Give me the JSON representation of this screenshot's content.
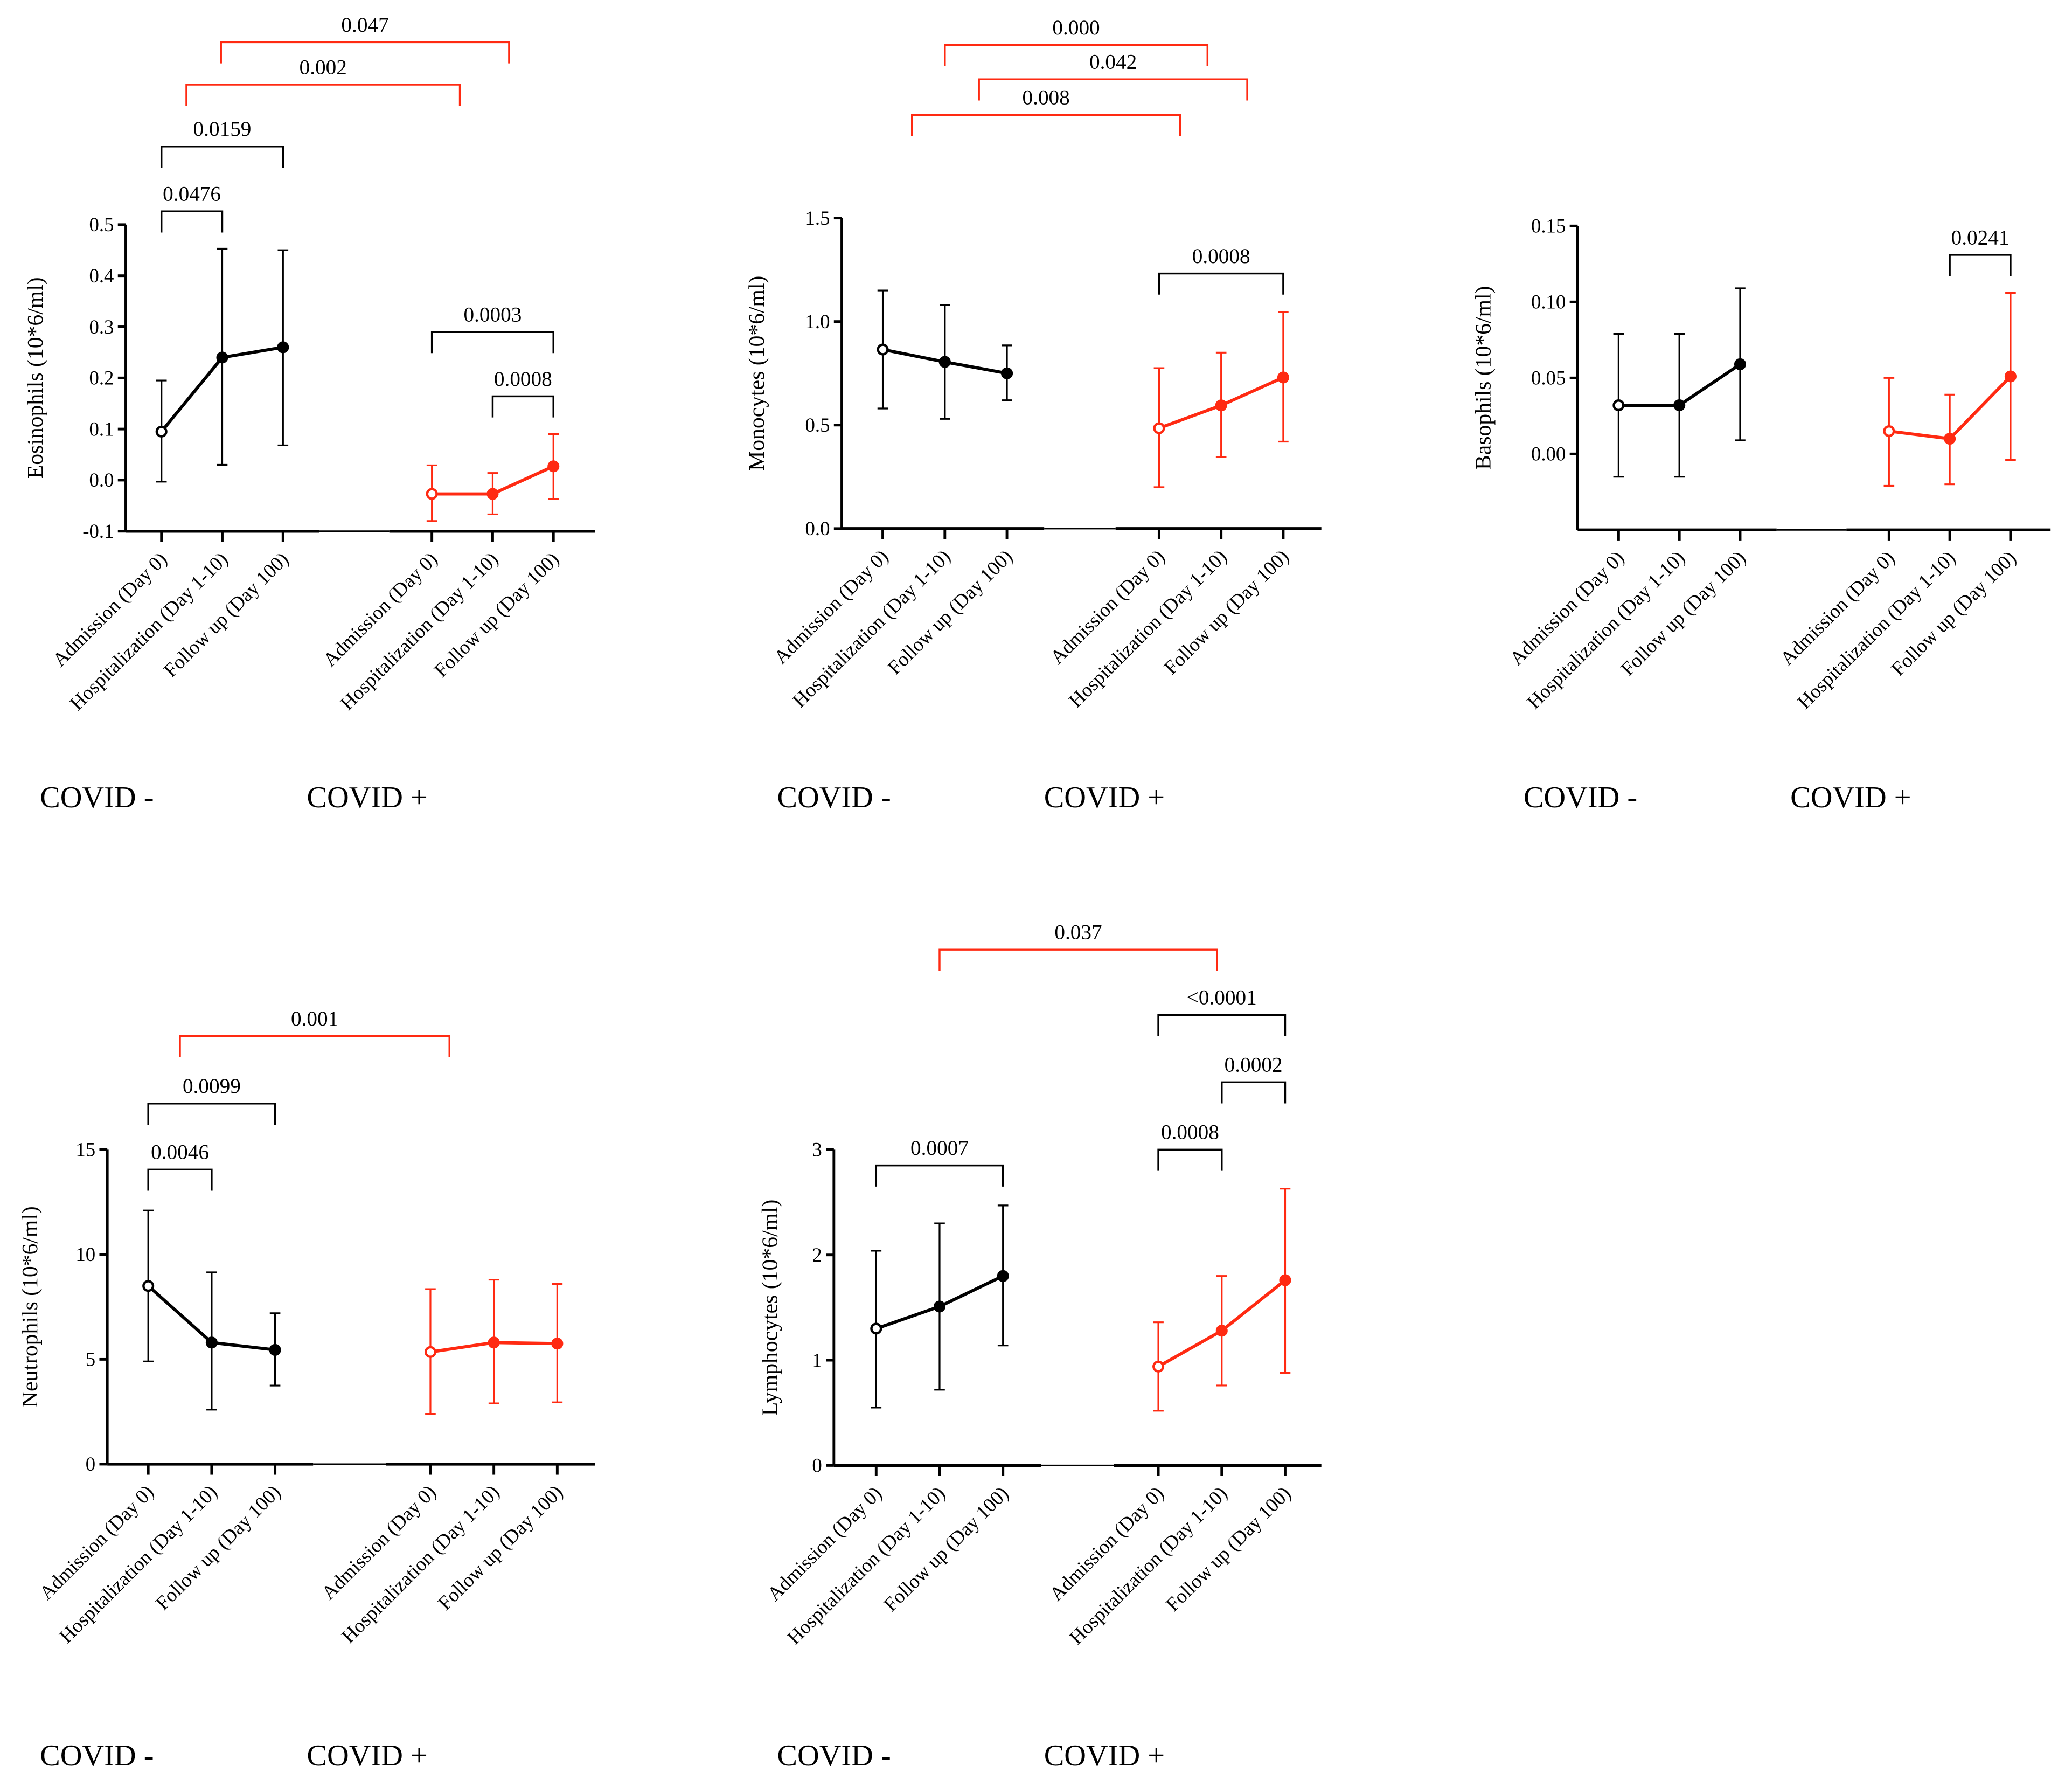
{
  "colors": {
    "covid_neg": "#000000",
    "covid_pos": "#ff2a12"
  },
  "chart_data": [
    {
      "type": "line",
      "ylabel": "Eosinophils (10*6/ml)",
      "ylim": [
        -0.1,
        0.5
      ],
      "yticks": [
        -0.1,
        0,
        0.1,
        0.2,
        0.3,
        0.4,
        0.5
      ],
      "ytick_labels": [
        "-0.1",
        "0.0",
        "0.1",
        "0.2",
        "0.3",
        "0.4",
        "0.5"
      ],
      "categories": [
        "Admission (Day 0)",
        "Hospitalization (Day 1-10)",
        "Follow up (Day 100)"
      ],
      "groups": [
        "COVID -",
        "COVID +"
      ],
      "series": [
        {
          "name": "COVID -",
          "mean": [
            0.095,
            0.24,
            0.26
          ],
          "lower": [
            -0.003,
            0.03,
            0.068
          ],
          "upper": [
            0.195,
            0.453,
            0.45
          ]
        },
        {
          "name": "COVID +",
          "mean": [
            -0.027,
            -0.027,
            0.027
          ],
          "lower": [
            -0.08,
            -0.067,
            -0.037
          ],
          "upper": [
            0.029,
            0.014,
            0.09
          ]
        }
      ],
      "brackets": [
        {
          "label": "0.0476",
          "from": 0,
          "to": 1,
          "y": 0.526,
          "color": "black"
        },
        {
          "label": "0.0159",
          "from": 0,
          "to": 2,
          "y": 0.653,
          "color": "black"
        },
        {
          "label": "0.002",
          "from": 0.41,
          "to": 4.91,
          "y": 0.774,
          "color": "red"
        },
        {
          "label": "0.047",
          "from": 0.98,
          "to": 5.72,
          "y": 0.857,
          "color": "red"
        },
        {
          "label": "0.0003",
          "from": 4.45,
          "to": 6.45,
          "y": 0.29,
          "color": "black"
        },
        {
          "label": "0.0008",
          "from": 5.45,
          "to": 6.45,
          "y": 0.164,
          "color": "black"
        }
      ]
    },
    {
      "type": "line",
      "ylabel": "Monocytes (10*6/ml)",
      "ylim": [
        0,
        1.5
      ],
      "yticks": [
        0,
        0.5,
        1.0,
        1.5
      ],
      "ytick_labels": [
        "0.0",
        "0.5",
        "1.0",
        "1.5"
      ],
      "categories": [
        "Admission (Day 0)",
        "Hospitalization (Day 1-10)",
        "Follow up (Day 100)"
      ],
      "groups": [
        "COVID -",
        "COVID +"
      ],
      "series": [
        {
          "name": "COVID -",
          "mean": [
            0.865,
            0.805,
            0.75
          ],
          "lower": [
            0.58,
            0.53,
            0.62
          ],
          "upper": [
            1.15,
            1.08,
            0.885
          ]
        },
        {
          "name": "COVID +",
          "mean": [
            0.485,
            0.595,
            0.73
          ],
          "lower": [
            0.2,
            0.345,
            0.42
          ],
          "upper": [
            0.775,
            0.85,
            1.045
          ]
        }
      ],
      "brackets": [
        {
          "label": "0.0008",
          "from": 4.45,
          "to": 6.45,
          "y": 1.232,
          "color": "black"
        },
        {
          "label": "0.008",
          "from": 0.47,
          "to": 4.79,
          "y": 1.998,
          "color": "red"
        },
        {
          "label": "0.042",
          "from": 1.55,
          "to": 5.87,
          "y": 2.17,
          "color": "red"
        },
        {
          "label": "0.000",
          "from": 1.0,
          "to": 5.23,
          "y": 2.336,
          "color": "red"
        }
      ]
    },
    {
      "type": "line",
      "ylabel": "Basophils (10*6/ml)",
      "ylim": [
        -0.05,
        0.15
      ],
      "yticks": [
        0,
        0.05,
        0.1,
        0.15
      ],
      "ytick_labels": [
        "0.00",
        "0.05",
        "0.10",
        "0.15"
      ],
      "categories": [
        "Admission (Day 0)",
        "Hospitalization (Day 1-10)",
        "Follow up (Day 100)"
      ],
      "groups": [
        "COVID -",
        "COVID +"
      ],
      "series": [
        {
          "name": "COVID -",
          "mean": [
            0.032,
            0.032,
            0.059
          ],
          "lower": [
            -0.015,
            -0.015,
            0.009
          ],
          "upper": [
            0.079,
            0.079,
            0.109
          ]
        },
        {
          "name": "COVID +",
          "mean": [
            0.015,
            0.01,
            0.051
          ],
          "lower": [
            -0.021,
            -0.02,
            -0.004
          ],
          "upper": [
            0.05,
            0.039,
            0.106
          ]
        }
      ],
      "brackets": [
        {
          "label": "0.0241",
          "from": 5.45,
          "to": 6.45,
          "y": 0.131,
          "color": "black"
        }
      ]
    },
    {
      "type": "line",
      "ylabel": "Neutrophils (10*6/ml)",
      "ylim": [
        0,
        15
      ],
      "yticks": [
        0,
        5,
        10,
        15
      ],
      "ytick_labels": [
        "0",
        "5",
        "10",
        "15"
      ],
      "categories": [
        "Admission (Day 0)",
        "Hospitalization (Day 1-10)",
        "Follow up (Day 100)"
      ],
      "groups": [
        "COVID -",
        "COVID +"
      ],
      "series": [
        {
          "name": "COVID -",
          "mean": [
            8.5,
            5.8,
            5.45
          ],
          "lower": [
            4.9,
            2.6,
            3.75
          ],
          "upper": [
            12.1,
            9.15,
            7.2
          ]
        },
        {
          "name": "COVID +",
          "mean": [
            5.35,
            5.8,
            5.75
          ],
          "lower": [
            2.4,
            2.9,
            2.95
          ],
          "upper": [
            8.35,
            8.8,
            8.6
          ]
        }
      ],
      "brackets": [
        {
          "label": "0.0046",
          "from": 0,
          "to": 1,
          "y": 14.05,
          "color": "black"
        },
        {
          "label": "0.0099",
          "from": 0,
          "to": 2,
          "y": 17.2,
          "color": "black"
        },
        {
          "label": "0.001",
          "from": 0.5,
          "to": 4.75,
          "y": 20.42,
          "color": "red"
        }
      ]
    },
    {
      "type": "line",
      "ylabel": "Lymphocytes (10*6/ml)",
      "ylim": [
        0,
        3
      ],
      "yticks": [
        0,
        1,
        2,
        3
      ],
      "ytick_labels": [
        "0",
        "1",
        "2",
        "3"
      ],
      "categories": [
        "Admission (Day 0)",
        "Hospitalization (Day 1-10)",
        "Follow up (Day 100)"
      ],
      "groups": [
        "COVID -",
        "COVID +"
      ],
      "series": [
        {
          "name": "COVID -",
          "mean": [
            1.3,
            1.51,
            1.8
          ],
          "lower": [
            0.55,
            0.72,
            1.14
          ],
          "upper": [
            2.04,
            2.3,
            2.47
          ]
        },
        {
          "name": "COVID +",
          "mean": [
            0.94,
            1.28,
            1.76
          ],
          "lower": [
            0.52,
            0.76,
            0.88
          ],
          "upper": [
            1.36,
            1.8,
            2.63
          ]
        }
      ],
      "brackets": [
        {
          "label": "0.0007",
          "from": 0,
          "to": 2,
          "y": 2.85,
          "color": "black"
        },
        {
          "label": "0.0008",
          "from": 4.45,
          "to": 5.45,
          "y": 3.0,
          "color": "black"
        },
        {
          "label": "0.0002",
          "from": 5.45,
          "to": 6.45,
          "y": 3.64,
          "color": "black"
        },
        {
          "label": "<0.0001",
          "from": 4.45,
          "to": 6.45,
          "y": 4.28,
          "color": "black"
        },
        {
          "label": "0.037",
          "from": 1.0,
          "to": 5.375,
          "y": 4.9,
          "color": "red"
        }
      ]
    }
  ]
}
